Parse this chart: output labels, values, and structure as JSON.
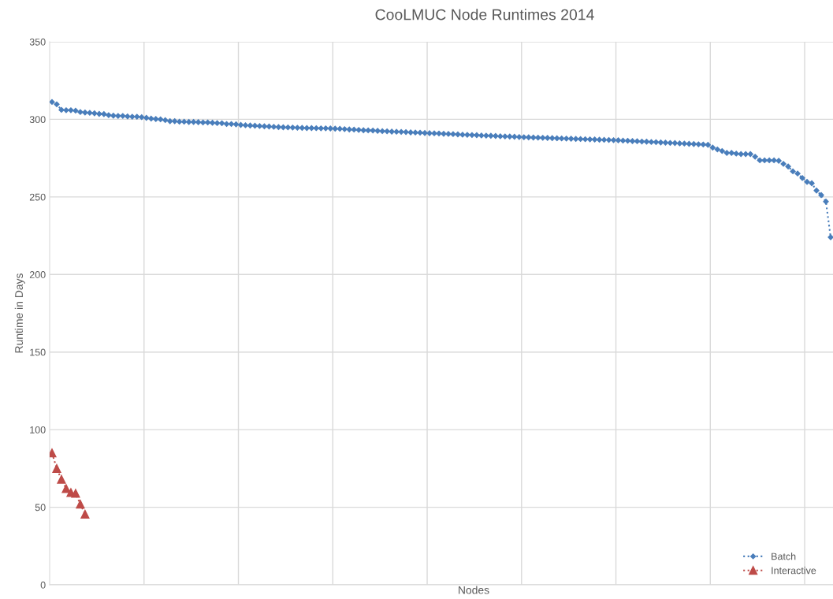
{
  "chart_data": {
    "type": "line",
    "title": "CooLMUC Node Runtimes 2014",
    "xlabel": "Nodes",
    "ylabel": "Runtime in Days",
    "categories": [
      null,
      null,
      null,
      null,
      null,
      null,
      null,
      null,
      null,
      null,
      null,
      null,
      null,
      null,
      null,
      null,
      null,
      null,
      null,
      null,
      null,
      null,
      null,
      null,
      null,
      null,
      null,
      null,
      null,
      null,
      null,
      null,
      null,
      null,
      null,
      null,
      null,
      null,
      null,
      null,
      null,
      null,
      null,
      null,
      null,
      null,
      null,
      null,
      null,
      null,
      null,
      null,
      null,
      null,
      null,
      null,
      null,
      null,
      null,
      null,
      null,
      null,
      null,
      null,
      null,
      null,
      null,
      null,
      null,
      null,
      null,
      null,
      null,
      null,
      null,
      null,
      null,
      null,
      null,
      null,
      null,
      null,
      null,
      null,
      null,
      null,
      null,
      null,
      null,
      null,
      null,
      null,
      null,
      null,
      null,
      null,
      null,
      null,
      null,
      null,
      null,
      null,
      null,
      null,
      null,
      null,
      null,
      null,
      null,
      null,
      null,
      null,
      null,
      null,
      null,
      null,
      null,
      null,
      null,
      null,
      null,
      null,
      null,
      null,
      null,
      null,
      null,
      null,
      null,
      null,
      null,
      null,
      null,
      null,
      null,
      null,
      null,
      null,
      null,
      null,
      null,
      null,
      null,
      null,
      null,
      null,
      null,
      null,
      null,
      null,
      null,
      null,
      null,
      null,
      null,
      null,
      null,
      null,
      null,
      null,
      null,
      null,
      null,
      null,
      null,
      null
    ],
    "series": [
      {
        "name": "Batch",
        "color": "#4a7ebb",
        "marker": "diamond",
        "line_style": "dotted",
        "values": [
          311.2,
          309.7,
          306.1,
          305.9,
          305.9,
          305.6,
          304.7,
          304.4,
          304.2,
          303.9,
          303.5,
          303.4,
          302.7,
          302.4,
          302.2,
          302.2,
          301.9,
          301.7,
          301.7,
          301.4,
          301.0,
          300.5,
          300.2,
          300.0,
          299.5,
          298.8,
          298.8,
          298.5,
          298.5,
          298.3,
          298.3,
          298.2,
          298.0,
          298.0,
          297.8,
          297.6,
          297.5,
          297.0,
          297.0,
          296.8,
          296.4,
          296.2,
          296.0,
          295.9,
          295.7,
          295.5,
          295.4,
          295.2,
          295.0,
          294.9,
          294.8,
          294.7,
          294.6,
          294.5,
          294.4,
          294.4,
          294.3,
          294.2,
          294.2,
          294.1,
          294.0,
          293.9,
          293.7,
          293.5,
          293.4,
          293.2,
          293.0,
          292.9,
          292.8,
          292.6,
          292.4,
          292.3,
          292.1,
          292.0,
          291.9,
          291.8,
          291.6,
          291.5,
          291.4,
          291.2,
          291.1,
          291.0,
          290.9,
          290.7,
          290.6,
          290.5,
          290.3,
          290.1,
          290.0,
          289.9,
          289.8,
          289.6,
          289.5,
          289.4,
          289.3,
          289.1,
          289.0,
          288.9,
          288.8,
          288.6,
          288.5,
          288.4,
          288.3,
          288.2,
          288.1,
          288.0,
          287.9,
          287.8,
          287.7,
          287.6,
          287.5,
          287.4,
          287.3,
          287.2,
          287.1,
          287.0,
          286.9,
          286.8,
          286.7,
          286.6,
          286.5,
          286.3,
          286.2,
          286.0,
          285.9,
          285.7,
          285.6,
          285.4,
          285.3,
          285.1,
          285.0,
          284.8,
          284.7,
          284.5,
          284.4,
          284.2,
          284.1,
          283.9,
          283.8,
          283.6,
          281.8,
          280.6,
          279.6,
          278.4,
          278.4,
          277.9,
          277.6,
          277.6,
          277.6,
          275.9,
          273.6,
          273.6,
          273.6,
          273.6,
          273.3,
          271.3,
          269.6,
          266.5,
          265.1,
          262.2,
          259.7,
          258.8,
          254.1,
          251.2,
          247.0,
          224.0
        ]
      },
      {
        "name": "Interactive",
        "color": "#be4b48",
        "marker": "triangle",
        "line_style": "dotted",
        "values": [
          85,
          75,
          68,
          62,
          59.5,
          59,
          52,
          45.5,
          null,
          null,
          null,
          null,
          null,
          null,
          null,
          null,
          null,
          null,
          null,
          null,
          null,
          null,
          null,
          null,
          null,
          null,
          null,
          null,
          null,
          null,
          null,
          null,
          null,
          null,
          null,
          null,
          null,
          null,
          null,
          null,
          null,
          null,
          null,
          null,
          null,
          null,
          null,
          null,
          null,
          null,
          null,
          null,
          null,
          null,
          null,
          null,
          null,
          null,
          null,
          null,
          null,
          null,
          null,
          null,
          null,
          null,
          null,
          null,
          null,
          null,
          null,
          null,
          null,
          null,
          null,
          null,
          null,
          null,
          null,
          null,
          null,
          null,
          null,
          null,
          null,
          null,
          null,
          null,
          null,
          null,
          null,
          null,
          null,
          null,
          null,
          null,
          null,
          null,
          null,
          null,
          null,
          null,
          null,
          null,
          null,
          null,
          null,
          null,
          null,
          null,
          null,
          null,
          null,
          null,
          null,
          null,
          null,
          null,
          null,
          null,
          null,
          null,
          null,
          null,
          null,
          null,
          null,
          null,
          null,
          null,
          null,
          null,
          null,
          null,
          null,
          null,
          null,
          null,
          null,
          null,
          null,
          null,
          null,
          null,
          null,
          null,
          null,
          null,
          null,
          null,
          null,
          null,
          null,
          null,
          null,
          null,
          null,
          null,
          null,
          null,
          null,
          null,
          null,
          null,
          null,
          null
        ]
      }
    ],
    "ylim": [
      0,
      350
    ],
    "yticks": [
      0,
      50,
      100,
      150,
      200,
      250,
      300,
      350
    ],
    "grid": true,
    "legend": "bottom right"
  }
}
